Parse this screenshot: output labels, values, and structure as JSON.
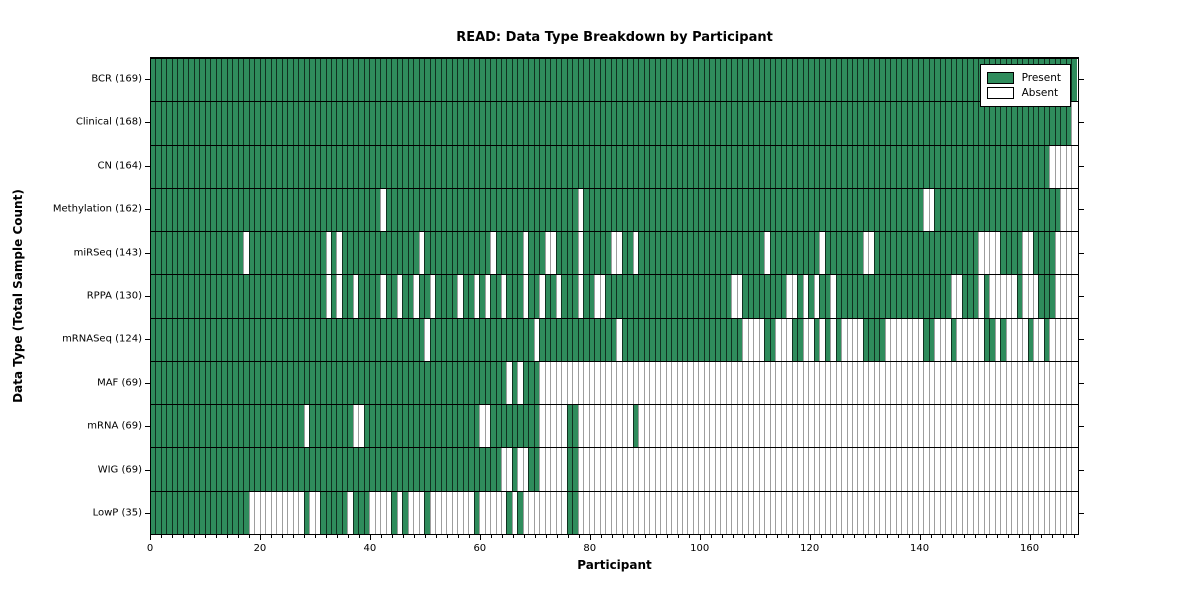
{
  "figure": {
    "title": "READ: Data Type Breakdown by Participant",
    "x_axis_label": "Participant",
    "y_axis_label": "Data Type (Total Sample Count)"
  },
  "legend": {
    "items": [
      {
        "label": "Present",
        "color": "#2f8c5c"
      },
      {
        "label": "Absent",
        "color": "#ffffff"
      }
    ]
  },
  "colors": {
    "present": "#2f8c5c",
    "absent": "#ffffff",
    "grid_present": "rgba(0,0,0,0.65)",
    "grid_absent": "rgba(0,0,0,0.38)"
  },
  "chart_data": {
    "type": "heatmap",
    "title": "READ: Data Type Breakdown by Participant",
    "xlabel": "Participant",
    "ylabel": "Data Type (Total Sample Count)",
    "x_range": [
      0,
      169
    ],
    "n_participants": 169,
    "x_major_ticks": [
      0,
      20,
      40,
      60,
      80,
      100,
      120,
      140,
      160
    ],
    "x_minor_tick_step": 2,
    "legend_position": "upper right",
    "cell_states": [
      "Present",
      "Absent"
    ],
    "rows": [
      {
        "label": "BCR",
        "total": 169,
        "absent_ranges": []
      },
      {
        "label": "Clinical",
        "total": 168,
        "absent_ranges": [
          [
            168,
            168
          ]
        ]
      },
      {
        "label": "CN",
        "total": 164,
        "absent_ranges": [
          [
            164,
            168
          ]
        ]
      },
      {
        "label": "Methylation",
        "total": 162,
        "absent_ranges": [
          [
            42,
            42
          ],
          [
            78,
            78
          ],
          [
            141,
            142
          ],
          [
            166,
            168
          ]
        ]
      },
      {
        "label": "miRSeq",
        "total": 143,
        "absent_ranges": [
          [
            17,
            17
          ],
          [
            32,
            32
          ],
          [
            34,
            34
          ],
          [
            49,
            49
          ],
          [
            62,
            62
          ],
          [
            68,
            68
          ],
          [
            72,
            73
          ],
          [
            78,
            78
          ],
          [
            84,
            85
          ],
          [
            88,
            88
          ],
          [
            112,
            112
          ],
          [
            122,
            122
          ],
          [
            130,
            131
          ],
          [
            151,
            154
          ],
          [
            159,
            160
          ],
          [
            165,
            168
          ]
        ]
      },
      {
        "label": "RPPA",
        "total": 130,
        "absent_ranges": [
          [
            32,
            32
          ],
          [
            34,
            34
          ],
          [
            37,
            37
          ],
          [
            42,
            42
          ],
          [
            45,
            45
          ],
          [
            48,
            48
          ],
          [
            51,
            51
          ],
          [
            56,
            56
          ],
          [
            59,
            59
          ],
          [
            61,
            61
          ],
          [
            64,
            64
          ],
          [
            68,
            68
          ],
          [
            71,
            71
          ],
          [
            74,
            74
          ],
          [
            78,
            78
          ],
          [
            81,
            82
          ],
          [
            106,
            107
          ],
          [
            116,
            117
          ],
          [
            119,
            119
          ],
          [
            121,
            121
          ],
          [
            124,
            124
          ],
          [
            146,
            147
          ],
          [
            151,
            151
          ],
          [
            153,
            157
          ],
          [
            159,
            161
          ],
          [
            165,
            168
          ]
        ]
      },
      {
        "label": "mRNASeq",
        "total": 124,
        "absent_ranges": [
          [
            50,
            50
          ],
          [
            70,
            70
          ],
          [
            85,
            85
          ],
          [
            108,
            111
          ],
          [
            114,
            116
          ],
          [
            119,
            120
          ],
          [
            122,
            122
          ],
          [
            124,
            124
          ],
          [
            126,
            129
          ],
          [
            134,
            140
          ],
          [
            143,
            145
          ],
          [
            147,
            151
          ],
          [
            154,
            154
          ],
          [
            156,
            159
          ],
          [
            161,
            162
          ],
          [
            164,
            168
          ]
        ]
      },
      {
        "label": "MAF",
        "total": 69,
        "absent_ranges": [
          [
            65,
            65
          ],
          [
            67,
            67
          ],
          [
            71,
            168
          ]
        ]
      },
      {
        "label": "mRNA",
        "total": 69,
        "absent_ranges": [
          [
            28,
            28
          ],
          [
            37,
            38
          ],
          [
            60,
            61
          ],
          [
            71,
            75
          ],
          [
            78,
            87
          ],
          [
            89,
            168
          ]
        ]
      },
      {
        "label": "WIG",
        "total": 69,
        "absent_ranges": [
          [
            64,
            65
          ],
          [
            67,
            68
          ],
          [
            71,
            75
          ],
          [
            78,
            168
          ]
        ]
      },
      {
        "label": "LowP",
        "total": 35,
        "absent_ranges": [
          [
            18,
            27
          ],
          [
            29,
            30
          ],
          [
            36,
            36
          ],
          [
            40,
            43
          ],
          [
            45,
            45
          ],
          [
            47,
            49
          ],
          [
            51,
            58
          ],
          [
            60,
            64
          ],
          [
            66,
            66
          ],
          [
            68,
            75
          ],
          [
            78,
            168
          ]
        ]
      }
    ]
  }
}
